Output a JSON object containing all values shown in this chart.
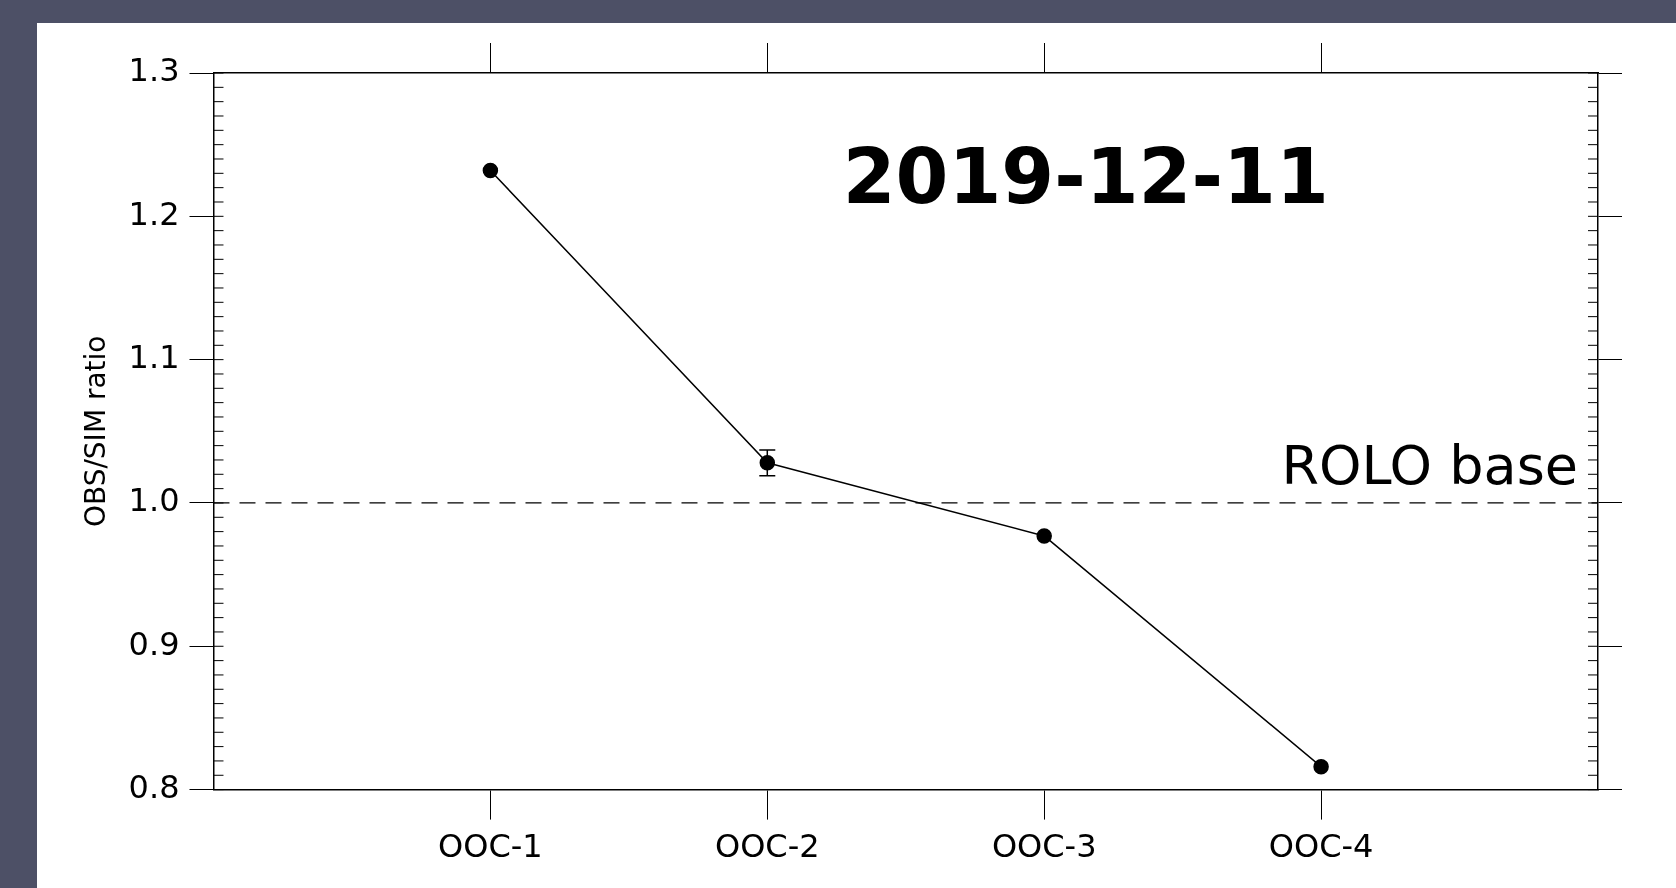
{
  "chart_data": {
    "type": "line",
    "ylabel": "OBS/SIM ratio",
    "categories": [
      "OOC-1",
      "OOC-2",
      "OOC-3",
      "OOC-4"
    ],
    "series": [
      {
        "color": "#000000",
        "values": [
          1.232,
          1.028,
          0.977,
          0.816
        ],
        "errors": [
          null,
          0.009,
          null,
          null
        ]
      }
    ],
    "ylim": [
      0.8,
      1.3
    ],
    "yticks": [
      0.8,
      0.9,
      {
        "value": 1.0,
        "label": "1.0"
      },
      1.1,
      1.2,
      1.3
    ],
    "ref_lines": [
      {
        "axis": "y",
        "value": 1.0,
        "label": "ROLO base",
        "line_style": "dashed",
        "color": "#000000"
      }
    ],
    "annotations": [
      "2019-12-11"
    ],
    "marker": "circle",
    "line_style": "solid",
    "grid": false,
    "legend": false
  }
}
